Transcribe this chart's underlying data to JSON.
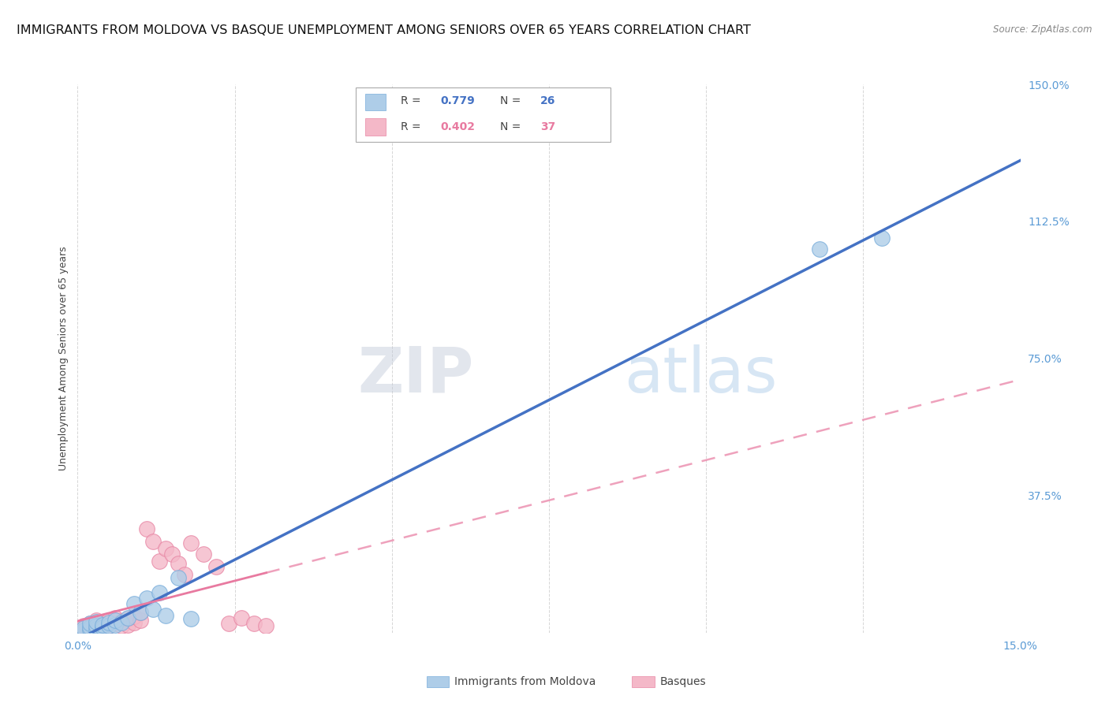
{
  "title": "IMMIGRANTS FROM MOLDOVA VS BASQUE UNEMPLOYMENT AMONG SENIORS OVER 65 YEARS CORRELATION CHART",
  "source": "Source: ZipAtlas.com",
  "ylabel": "Unemployment Among Seniors over 65 years",
  "xlim": [
    0.0,
    0.15
  ],
  "ylim": [
    0.0,
    1.5
  ],
  "xticks": [
    0.0,
    0.025,
    0.05,
    0.075,
    0.1,
    0.125,
    0.15
  ],
  "xticklabels": [
    "0.0%",
    "",
    "",
    "",
    "",
    "",
    "15.0%"
  ],
  "yticks": [
    0.0,
    0.375,
    0.75,
    1.125,
    1.5
  ],
  "yticklabels": [
    "",
    "37.5%",
    "75.0%",
    "112.5%",
    "150.0%"
  ],
  "series1_label": "Immigrants from Moldova",
  "series1_R": "0.779",
  "series1_N": "26",
  "series1_color": "#aecde8",
  "series1_edge_color": "#7aaedb",
  "series1_line_color": "#4472c4",
  "series2_label": "Basques",
  "series2_R": "0.402",
  "series2_N": "37",
  "series2_color": "#f4b8c8",
  "series2_edge_color": "#e887a5",
  "series2_line_color": "#e87aA0",
  "series1_x": [
    0.001,
    0.001,
    0.002,
    0.002,
    0.002,
    0.003,
    0.003,
    0.003,
    0.004,
    0.004,
    0.005,
    0.005,
    0.006,
    0.006,
    0.007,
    0.008,
    0.009,
    0.01,
    0.011,
    0.012,
    0.013,
    0.014,
    0.016,
    0.018,
    0.118,
    0.128
  ],
  "series1_y": [
    0.005,
    0.012,
    0.008,
    0.015,
    0.025,
    0.01,
    0.018,
    0.03,
    0.015,
    0.022,
    0.018,
    0.028,
    0.022,
    0.035,
    0.028,
    0.04,
    0.08,
    0.055,
    0.095,
    0.065,
    0.11,
    0.048,
    0.15,
    0.038,
    1.05,
    1.08
  ],
  "series2_x": [
    0.001,
    0.001,
    0.001,
    0.002,
    0.002,
    0.002,
    0.003,
    0.003,
    0.003,
    0.004,
    0.004,
    0.005,
    0.005,
    0.006,
    0.006,
    0.007,
    0.007,
    0.008,
    0.008,
    0.009,
    0.009,
    0.01,
    0.01,
    0.011,
    0.012,
    0.013,
    0.014,
    0.015,
    0.016,
    0.017,
    0.018,
    0.02,
    0.022,
    0.024,
    0.026,
    0.028,
    0.03
  ],
  "series2_y": [
    0.005,
    0.012,
    0.02,
    0.008,
    0.015,
    0.025,
    0.01,
    0.02,
    0.035,
    0.015,
    0.028,
    0.02,
    0.035,
    0.025,
    0.04,
    0.018,
    0.032,
    0.022,
    0.038,
    0.028,
    0.045,
    0.035,
    0.055,
    0.285,
    0.25,
    0.195,
    0.23,
    0.215,
    0.19,
    0.16,
    0.245,
    0.215,
    0.18,
    0.025,
    0.04,
    0.025,
    0.02
  ],
  "watermark_zip": "ZIP",
  "watermark_atlas": "atlas",
  "background_color": "#ffffff",
  "grid_color": "#cccccc",
  "tick_color": "#5b9bd5",
  "title_fontsize": 11.5,
  "axis_label_fontsize": 9,
  "tick_fontsize": 10,
  "legend_fontsize": 10.5
}
